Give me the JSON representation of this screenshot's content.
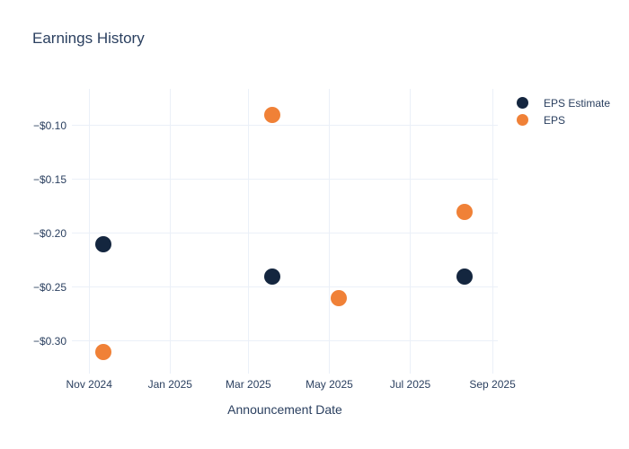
{
  "chart_data": {
    "type": "scatter",
    "title": "Earnings History",
    "xlabel": "Announcement Date",
    "ylabel": "",
    "x_type": "date",
    "x_domain": [
      "2024-10-19",
      "2025-09-05"
    ],
    "y_domain": [
      -0.33,
      -0.066
    ],
    "grid": true,
    "legend_position": "top-right",
    "x_ticks": [
      {
        "date": "2024-11-01",
        "label": "Nov 2024"
      },
      {
        "date": "2025-01-01",
        "label": "Jan 2025"
      },
      {
        "date": "2025-03-01",
        "label": "Mar 2025"
      },
      {
        "date": "2025-05-01",
        "label": "May 2025"
      },
      {
        "date": "2025-07-01",
        "label": "Jul 2025"
      },
      {
        "date": "2025-09-01",
        "label": "Sep 2025"
      }
    ],
    "y_ticks": [
      {
        "value": -0.1,
        "label": "−$0.10"
      },
      {
        "value": -0.15,
        "label": "−$0.15"
      },
      {
        "value": -0.2,
        "label": "−$0.20"
      },
      {
        "value": -0.25,
        "label": "−$0.25"
      },
      {
        "value": -0.3,
        "label": "−$0.30"
      }
    ],
    "series": [
      {
        "name": "EPS Estimate",
        "color": "#14263f",
        "marker_size": 18,
        "points": [
          {
            "date": "2024-11-12",
            "value": -0.21
          },
          {
            "date": "2025-03-19",
            "value": -0.24
          },
          {
            "date": "2025-08-11",
            "value": -0.24
          }
        ]
      },
      {
        "name": "EPS",
        "color": "#f08137",
        "marker_size": 18,
        "points": [
          {
            "date": "2024-11-12",
            "value": -0.31
          },
          {
            "date": "2025-03-19",
            "value": -0.09
          },
          {
            "date": "2025-05-08",
            "value": -0.26
          },
          {
            "date": "2025-08-11",
            "value": -0.18
          }
        ]
      }
    ],
    "colors": {
      "text": "#2a3f5f",
      "grid": "#ebf0f8",
      "background": "#ffffff"
    }
  }
}
